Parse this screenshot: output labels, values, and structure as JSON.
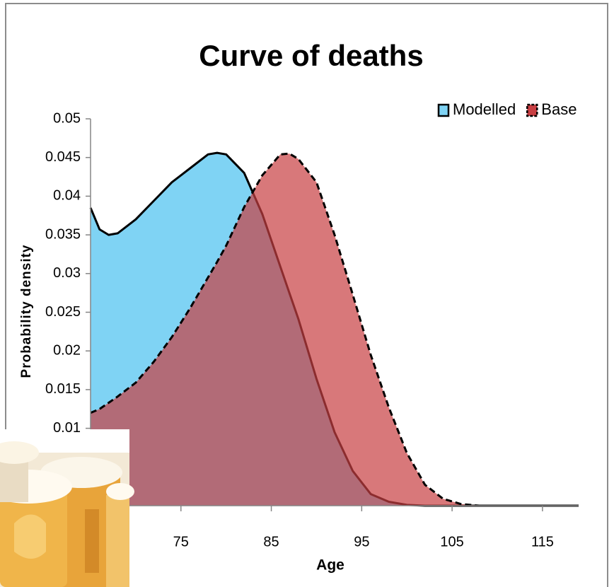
{
  "chart_data": {
    "type": "area",
    "title": "Curve of deaths",
    "x_label": "Age",
    "y_label": "Probability density",
    "x": [
      65,
      66,
      67,
      68,
      70,
      72,
      74,
      76,
      78,
      79,
      80,
      82,
      84,
      86,
      87,
      88,
      90,
      92,
      94,
      96,
      98,
      100,
      102,
      104,
      106,
      108,
      110,
      115,
      119
    ],
    "series": [
      {
        "name": "Modelled",
        "color": "#7fd3f4",
        "line_style": "solid",
        "values": [
          0.0385,
          0.0357,
          0.035,
          0.0352,
          0.037,
          0.0394,
          0.0418,
          0.0436,
          0.0454,
          0.0456,
          0.0454,
          0.043,
          0.0377,
          0.0309,
          0.0275,
          0.0241,
          0.0164,
          0.0095,
          0.0045,
          0.0015,
          0.0005,
          0.0001,
          0,
          0,
          0,
          0,
          0,
          0,
          0
        ]
      },
      {
        "name": "Base",
        "color": "#c83e42",
        "line_style": "dashed",
        "values": [
          0.012,
          0.0125,
          0.0133,
          0.0141,
          0.0159,
          0.0186,
          0.0218,
          0.0255,
          0.0295,
          0.0315,
          0.0336,
          0.0386,
          0.0427,
          0.0454,
          0.0455,
          0.0448,
          0.0418,
          0.035,
          0.0273,
          0.0195,
          0.0127,
          0.0068,
          0.0027,
          0.0009,
          0.0002,
          0,
          0,
          0,
          0
        ]
      }
    ],
    "xlim": [
      65,
      119
    ],
    "ylim": [
      0,
      0.05
    ],
    "xticks": [
      75,
      85,
      95,
      105,
      115
    ],
    "yticks": [
      0.01,
      0.015,
      0.02,
      0.025,
      0.03,
      0.035,
      0.04,
      0.045,
      0.05
    ],
    "legend": "top-right"
  }
}
